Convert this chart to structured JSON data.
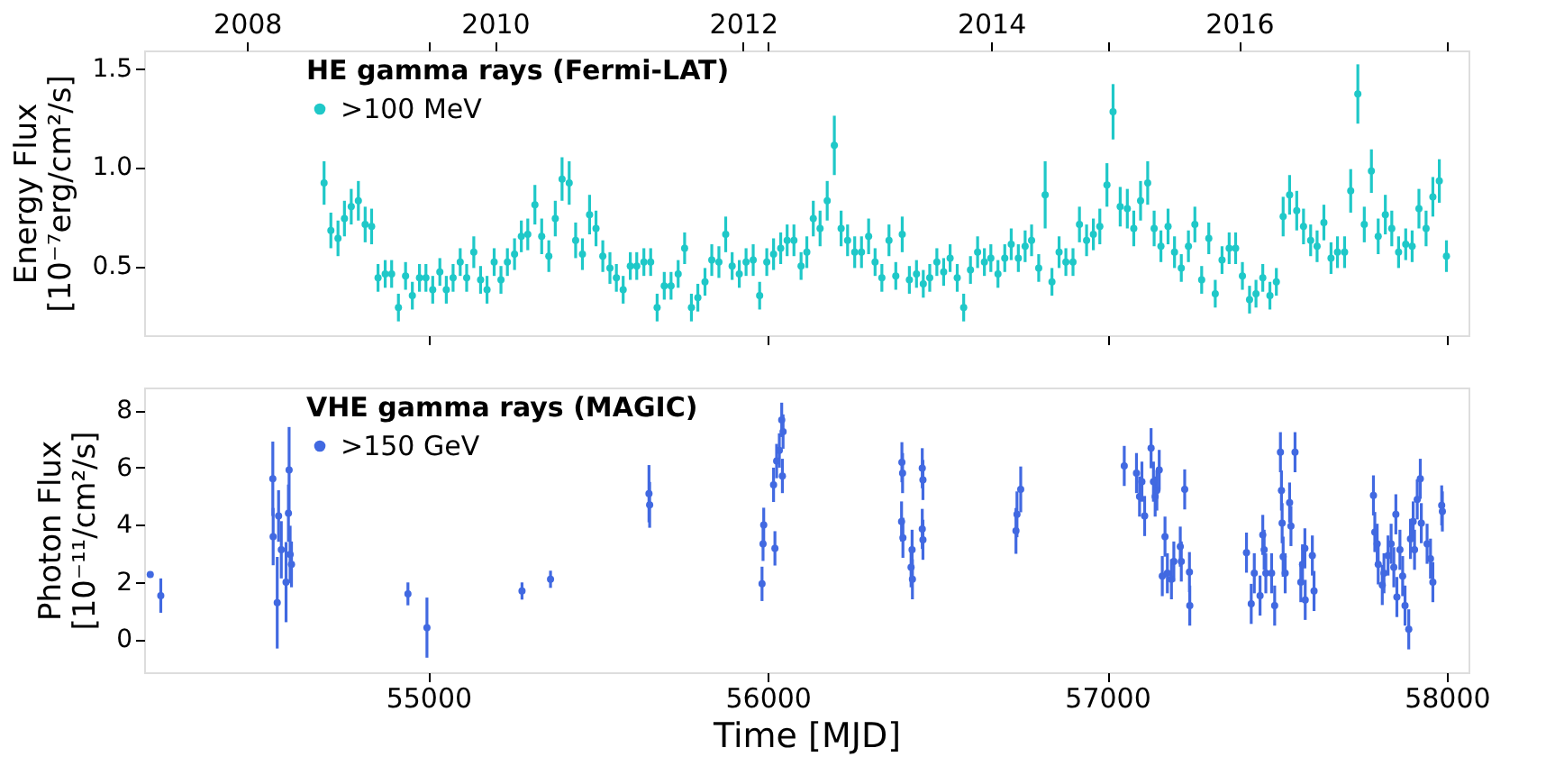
{
  "chart_data": [
    {
      "type": "scatter",
      "ylabel": "Energy Flux\n[10⁻⁷erg/cm²/s]",
      "legend_title": "HE gamma rays (Fermi-LAT)",
      "legend": "top left",
      "marker": "circle",
      "grid": false,
      "tick_labels": "y",
      "xlim": [
        54163,
        58064
      ],
      "xticks": [
        55000,
        56000,
        57000,
        58000
      ],
      "x2lim": [
        2007.17,
        2017.85
      ],
      "x2ticks": [
        2008,
        2010,
        2012,
        2014,
        2016
      ],
      "ylim": [
        0.15,
        1.59
      ],
      "yticks": [
        0.5,
        {
          "value": 1,
          "label": "1.0"
        },
        1.5
      ],
      "series": [
        {
          "name": ">100 MeV",
          "color": "#1fc8c8",
          "x": [
            54693,
            54713,
            54734,
            54753,
            54773,
            54794,
            54814,
            54833,
            54852,
            54873,
            54892,
            54912,
            54933,
            54953,
            54974,
            54993,
            55013,
            55034,
            55053,
            55073,
            55094,
            55113,
            55134,
            55154,
            55173,
            55194,
            55214,
            55233,
            55254,
            55274,
            55293,
            55314,
            55334,
            55355,
            55374,
            55394,
            55415,
            55434,
            55454,
            55475,
            55494,
            55514,
            55535,
            55554,
            55574,
            55595,
            55614,
            55635,
            55655,
            55674,
            55695,
            55715,
            55736,
            55755,
            55775,
            55794,
            55815,
            55835,
            55856,
            55876,
            55895,
            55916,
            55936,
            55957,
            55976,
            55997,
            56017,
            56038,
            56057,
            56077,
            56098,
            56115,
            56134,
            56154,
            56175,
            56196,
            56216,
            56235,
            56256,
            56276,
            56297,
            56316,
            56336,
            56357,
            56377,
            56396,
            56417,
            56438,
            56458,
            56477,
            56498,
            56518,
            56537,
            56558,
            56577,
            56597,
            56618,
            56638,
            56657,
            56678,
            56698,
            56717,
            56738,
            56758,
            56777,
            56798,
            56817,
            56837,
            56858,
            56878,
            56899,
            56918,
            56939,
            56959,
            56978,
            56999,
            57017,
            57038,
            57059,
            57078,
            57098,
            57119,
            57138,
            57158,
            57179,
            57198,
            57218,
            57239,
            57258,
            57278,
            57299,
            57318,
            57338,
            57359,
            57378,
            57398,
            57419,
            57438,
            57458,
            57479,
            57498,
            57518,
            57537,
            57558,
            57578,
            57599,
            57618,
            57638,
            57659,
            57678,
            57699,
            57717,
            57738,
            57757,
            57778,
            57798,
            57819,
            57838,
            57858,
            57879,
            57898,
            57918,
            57939,
            57959,
            57978,
            57999
          ],
          "values": [
            0.92,
            0.68,
            0.64,
            0.74,
            0.8,
            0.83,
            0.71,
            0.7,
            0.44,
            0.46,
            0.46,
            0.29,
            0.45,
            0.35,
            0.44,
            0.44,
            0.38,
            0.47,
            0.38,
            0.44,
            0.52,
            0.44,
            0.57,
            0.43,
            0.38,
            0.52,
            0.43,
            0.52,
            0.56,
            0.65,
            0.66,
            0.81,
            0.65,
            0.55,
            0.74,
            0.94,
            0.92,
            0.63,
            0.56,
            0.76,
            0.69,
            0.55,
            0.49,
            0.44,
            0.38,
            0.5,
            0.5,
            0.52,
            0.52,
            0.29,
            0.4,
            0.4,
            0.46,
            0.59,
            0.29,
            0.34,
            0.42,
            0.53,
            0.52,
            0.66,
            0.5,
            0.46,
            0.52,
            0.53,
            0.35,
            0.52,
            0.56,
            0.59,
            0.63,
            0.63,
            0.5,
            0.57,
            0.74,
            0.69,
            0.83,
            1.11,
            0.69,
            0.63,
            0.57,
            0.57,
            0.65,
            0.52,
            0.44,
            0.63,
            0.45,
            0.66,
            0.43,
            0.46,
            0.41,
            0.44,
            0.52,
            0.47,
            0.54,
            0.44,
            0.29,
            0.48,
            0.57,
            0.52,
            0.54,
            0.46,
            0.54,
            0.61,
            0.54,
            0.6,
            0.63,
            0.49,
            0.86,
            0.42,
            0.57,
            0.52,
            0.52,
            0.71,
            0.63,
            0.66,
            0.7,
            0.91,
            1.28,
            0.8,
            0.79,
            0.69,
            0.83,
            0.92,
            0.69,
            0.6,
            0.7,
            0.57,
            0.49,
            0.6,
            0.71,
            0.43,
            0.64,
            0.36,
            0.53,
            0.59,
            0.59,
            0.45,
            0.33,
            0.36,
            0.44,
            0.35,
            0.42,
            0.75,
            0.86,
            0.78,
            0.7,
            0.63,
            0.6,
            0.72,
            0.54,
            0.57,
            0.57,
            0.88,
            1.37,
            0.71,
            0.98,
            0.65,
            0.76,
            0.69,
            0.57,
            0.61,
            0.6,
            0.79,
            0.69,
            0.85,
            0.93,
            0.55
          ],
          "errors": [
            0.11,
            0.09,
            0.09,
            0.09,
            0.09,
            0.1,
            0.09,
            0.09,
            0.07,
            0.07,
            0.07,
            0.07,
            0.07,
            0.07,
            0.07,
            0.07,
            0.07,
            0.07,
            0.07,
            0.07,
            0.07,
            0.07,
            0.08,
            0.07,
            0.07,
            0.07,
            0.07,
            0.07,
            0.08,
            0.08,
            0.08,
            0.1,
            0.09,
            0.08,
            0.09,
            0.11,
            0.11,
            0.09,
            0.08,
            0.1,
            0.09,
            0.08,
            0.08,
            0.07,
            0.07,
            0.07,
            0.07,
            0.07,
            0.07,
            0.07,
            0.07,
            0.07,
            0.07,
            0.08,
            0.07,
            0.07,
            0.07,
            0.08,
            0.08,
            0.09,
            0.07,
            0.07,
            0.07,
            0.08,
            0.07,
            0.07,
            0.08,
            0.08,
            0.08,
            0.08,
            0.07,
            0.08,
            0.09,
            0.09,
            0.1,
            0.15,
            0.09,
            0.08,
            0.08,
            0.08,
            0.09,
            0.07,
            0.07,
            0.08,
            0.07,
            0.09,
            0.07,
            0.07,
            0.07,
            0.07,
            0.07,
            0.07,
            0.07,
            0.07,
            0.07,
            0.07,
            0.08,
            0.07,
            0.07,
            0.07,
            0.07,
            0.08,
            0.07,
            0.08,
            0.08,
            0.07,
            0.17,
            0.07,
            0.08,
            0.07,
            0.07,
            0.09,
            0.08,
            0.08,
            0.09,
            0.11,
            0.14,
            0.1,
            0.1,
            0.09,
            0.1,
            0.11,
            0.09,
            0.08,
            0.09,
            0.08,
            0.07,
            0.08,
            0.09,
            0.07,
            0.08,
            0.07,
            0.07,
            0.08,
            0.08,
            0.07,
            0.07,
            0.07,
            0.07,
            0.07,
            0.07,
            0.1,
            0.1,
            0.1,
            0.09,
            0.08,
            0.08,
            0.09,
            0.08,
            0.08,
            0.08,
            0.11,
            0.15,
            0.09,
            0.11,
            0.09,
            0.1,
            0.09,
            0.08,
            0.08,
            0.08,
            0.1,
            0.09,
            0.1,
            0.11,
            0.08
          ]
        }
      ]
    },
    {
      "type": "scatter",
      "ylabel": "Photon Flux\n[10⁻¹¹/cm²/s]",
      "xlabel": "Time [MJD]",
      "legend_title": "VHE gamma rays (MAGIC)",
      "legend": "top left",
      "marker": "circle",
      "grid": false,
      "xlim": [
        54163,
        58064
      ],
      "xticks": [
        55000,
        56000,
        57000,
        58000
      ],
      "ylim": [
        -1.15,
        8.8
      ],
      "yticks": [
        0,
        2,
        4,
        6,
        8
      ],
      "series": [
        {
          "name": ">150 GeV",
          "color": "#4169e1",
          "x": [
            54181,
            54212,
            54542,
            54543,
            54555,
            54559,
            54567,
            54581,
            54588,
            54590,
            54593,
            54597,
            54940,
            54996,
            55276,
            55360,
            55650,
            55652,
            55983,
            55986,
            55988,
            56017,
            56021,
            56026,
            56034,
            56041,
            56045,
            56043,
            56395,
            56397,
            56394,
            56398,
            56422,
            56426,
            56425,
            56455,
            56457,
            56455,
            56457,
            56731,
            56734,
            56745,
            57050,
            57086,
            57095,
            57102,
            57110,
            57129,
            57136,
            57141,
            57146,
            57153,
            57162,
            57170,
            57177,
            57189,
            57196,
            57215,
            57218,
            57228,
            57242,
            57243,
            57410,
            57424,
            57433,
            57450,
            57458,
            57462,
            57467,
            57484,
            57493,
            57510,
            57513,
            57515,
            57518,
            57524,
            57537,
            57541,
            57553,
            57570,
            57575,
            57582,
            57583,
            57604,
            57609,
            57784,
            57788,
            57795,
            57798,
            57810,
            57815,
            57827,
            57836,
            57844,
            57850,
            57853,
            57862,
            57870,
            57877,
            57888,
            57893,
            57901,
            57905,
            57913,
            57922,
            57925,
            57942,
            57952,
            57959,
            57985,
            57987
          ],
          "values": [
            2.27,
            1.53,
            5.61,
            3.59,
            1.28,
            4.31,
            3.13,
            2.0,
            4.41,
            5.92,
            2.97,
            2.62,
            1.59,
            0.41,
            1.69,
            2.1,
            5.09,
            4.7,
            1.94,
            3.34,
            4.0,
            5.4,
            3.18,
            6.23,
            6.6,
            7.67,
            7.26,
            5.71,
            6.19,
            5.81,
            4.12,
            3.55,
            2.52,
            2.1,
            3.13,
            5.98,
            5.57,
            3.86,
            3.48,
            3.79,
            4.37,
            5.24,
            6.06,
            5.81,
            4.99,
            5.51,
            4.31,
            6.68,
            5.51,
            4.99,
            5.2,
            5.92,
            2.21,
            3.59,
            2.31,
            2.1,
            2.72,
            3.24,
            2.72,
            5.24,
            2.35,
            1.18,
            3.03,
            1.24,
            2.31,
            1.53,
            3.65,
            3.13,
            2.31,
            2.31,
            1.18,
            6.54,
            5.2,
            4.06,
            2.89,
            2.31,
            4.78,
            3.96,
            6.54,
            2.0,
            2.62,
            3.18,
            1.38,
            2.93,
            1.69,
            5.03,
            3.75,
            3.34,
            2.62,
            1.9,
            2.31,
            2.93,
            3.34,
            2.52,
            4.37,
            1.48,
            3.13,
            2.21,
            1.18,
            0.35,
            3.51,
            4.12,
            3.13,
            4.89,
            5.61,
            4.06,
            3.34,
            2.82,
            2.0,
            4.68,
            4.47
          ],
          "errors": [
            0.1,
            0.6,
            1.3,
            1.0,
            1.6,
            0.9,
            1.0,
            1.4,
            1.0,
            1.5,
            1.0,
            0.8,
            0.4,
            1.05,
            0.3,
            0.3,
            1.0,
            0.8,
            0.6,
            0.6,
            0.6,
            0.6,
            0.6,
            0.6,
            0.6,
            0.6,
            0.6,
            0.6,
            0.7,
            0.7,
            0.7,
            0.7,
            0.7,
            0.7,
            0.7,
            0.7,
            0.7,
            0.7,
            0.7,
            0.8,
            0.8,
            0.8,
            0.7,
            0.7,
            0.7,
            0.7,
            0.7,
            0.7,
            0.7,
            0.7,
            0.7,
            0.7,
            0.7,
            0.7,
            0.7,
            0.7,
            0.7,
            0.7,
            0.7,
            0.7,
            0.7,
            0.7,
            0.7,
            0.7,
            0.7,
            0.7,
            0.7,
            0.7,
            0.7,
            0.7,
            0.7,
            0.7,
            0.7,
            0.7,
            0.7,
            0.7,
            0.7,
            0.7,
            0.7,
            0.7,
            0.7,
            0.7,
            0.7,
            0.7,
            0.7,
            0.7,
            0.7,
            0.7,
            0.7,
            0.7,
            0.7,
            0.7,
            0.7,
            0.7,
            0.7,
            0.7,
            0.7,
            0.7,
            0.7,
            0.7,
            0.7,
            0.7,
            0.7,
            0.7,
            0.7,
            0.7,
            0.7,
            0.7,
            0.7,
            0.7,
            0.7
          ]
        }
      ]
    }
  ]
}
